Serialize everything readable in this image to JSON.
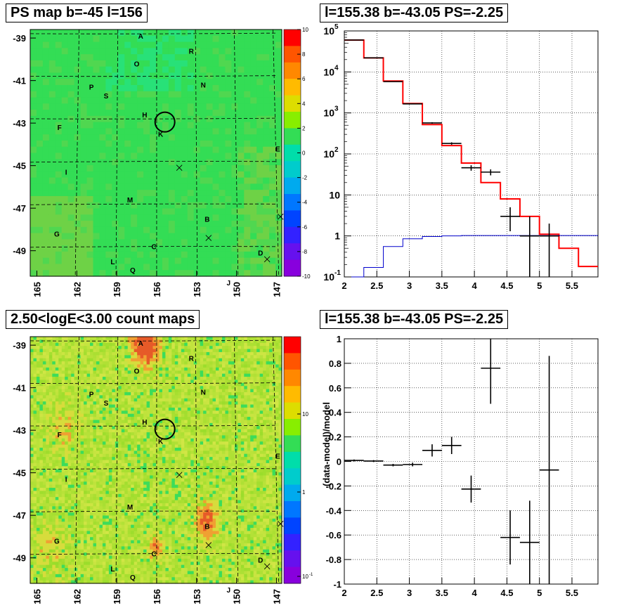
{
  "titles": {
    "ps_map": "PS map b=-45 l=156",
    "spectrum": "l=155.38 b=-43.05 PS=-2.25",
    "count_map": "2.50<logE<3.00 count maps",
    "residual": "l=155.38 b=-43.05 PS=-2.25"
  },
  "maps": {
    "y_ticks": [
      "-39",
      "-41",
      "-43",
      "-45",
      "-47",
      "-49"
    ],
    "x_ticks": [
      "165",
      "162",
      "159",
      "156",
      "153",
      "150",
      "147"
    ],
    "source_labels": [
      "A",
      "R",
      "O",
      "P",
      "N",
      "S",
      "H",
      "K",
      "F",
      "E",
      "I",
      "M",
      "B",
      "G",
      "C",
      "D",
      "L",
      "Q",
      "J"
    ]
  },
  "chart_data": [
    {
      "type": "heatmap",
      "title": "PS map b=-45 l=156",
      "ylim": [
        -50.2,
        -38.6
      ],
      "xlim": [
        165.5,
        146.6
      ],
      "colorbar": {
        "min": -10,
        "max": 10,
        "ticks": [
          "10",
          "8",
          "6",
          "4",
          "2",
          "0",
          "-2",
          "-4",
          "-6",
          "-8",
          "-10"
        ]
      },
      "base_color": "#33dd55"
    },
    {
      "type": "line",
      "title": "l=155.38 b=-43.05 PS=-2.25",
      "xlim": [
        2,
        5.9
      ],
      "ylim": [
        0.1,
        100000
      ],
      "log_y": true,
      "x_ticks": [
        "2",
        "2.5",
        "3",
        "3.5",
        "4",
        "4.5",
        "5",
        "5.5"
      ],
      "y_tick_labels": [
        "10",
        "1",
        "10"
      ],
      "y_tick_labels_pow": [
        "5",
        "4",
        "3",
        "2",
        "-1"
      ],
      "grid": true,
      "series": [
        {
          "color": "#ff0000",
          "edges": [
            2,
            2.3,
            2.6,
            2.9,
            3.2,
            3.5,
            3.8,
            4.1,
            4.4,
            4.7,
            5.0,
            5.3,
            5.6,
            5.9
          ],
          "values": [
            60000,
            22000,
            6000,
            1700,
            520,
            160,
            60,
            20,
            8,
            3,
            1.1,
            0.5,
            0.18
          ]
        },
        {
          "color": "#0000cc",
          "edges": [
            2,
            2.3,
            2.6,
            2.9,
            3.2,
            3.5,
            3.8,
            4.1,
            4.4,
            4.7,
            5.0,
            5.3,
            5.6,
            5.9
          ],
          "values": [
            0.08,
            0.17,
            0.55,
            0.85,
            0.97,
            1.0,
            1.02,
            1.02,
            1.02,
            1.02,
            1.02,
            1.02,
            1.02
          ]
        },
        {
          "color": "#000000",
          "points": [
            {
              "x": 2.15,
              "y": 60000,
              "xerr": 0.15,
              "ylo": 59000,
              "yhi": 61000
            },
            {
              "x": 2.45,
              "y": 22000,
              "xerr": 0.15,
              "ylo": 21500,
              "yhi": 22500
            },
            {
              "x": 2.75,
              "y": 5800,
              "xerr": 0.15,
              "ylo": 5700,
              "yhi": 5900
            },
            {
              "x": 3.05,
              "y": 1660,
              "xerr": 0.15,
              "ylo": 1620,
              "yhi": 1700
            },
            {
              "x": 3.35,
              "y": 570,
              "xerr": 0.15,
              "ylo": 545,
              "yhi": 595
            },
            {
              "x": 3.65,
              "y": 180,
              "xerr": 0.15,
              "ylo": 168,
              "yhi": 192
            },
            {
              "x": 3.95,
              "y": 46,
              "xerr": 0.15,
              "ylo": 39,
              "yhi": 53
            },
            {
              "x": 4.25,
              "y": 36,
              "xerr": 0.15,
              "ylo": 30,
              "yhi": 42
            },
            {
              "x": 4.55,
              "y": 3,
              "xerr": 0.15,
              "ylo": 1.3,
              "yhi": 5
            },
            {
              "x": 4.85,
              "y": 1,
              "xerr": 0.15,
              "ylo": 0.1,
              "yhi": 3
            },
            {
              "x": 5.15,
              "y": 1,
              "xerr": 0.15,
              "ylo": 0.1,
              "yhi": 2
            }
          ]
        }
      ]
    },
    {
      "type": "heatmap",
      "title": "2.50<logE<3.00 count maps",
      "ylim": [
        -50.2,
        -38.6
      ],
      "xlim": [
        165.5,
        146.6
      ],
      "colorbar": {
        "log": true,
        "ticks": [
          "10",
          "1",
          "10"
        ],
        "tick_pow": [
          "-1"
        ]
      },
      "base_color": "#a9e236"
    },
    {
      "type": "scatter",
      "title": "l=155.38 b=-43.05 PS=-2.25",
      "ylabel": "(data-model)/model",
      "xlim": [
        2,
        5.9
      ],
      "ylim": [
        -1,
        1
      ],
      "x_ticks": [
        "2",
        "2.5",
        "3",
        "3.5",
        "4",
        "4.5",
        "5",
        "5.5"
      ],
      "y_ticks": [
        "1",
        "0.8",
        "0.6",
        "0.4",
        "0.2",
        "0",
        "-0.2",
        "-0.4",
        "-0.6",
        "-0.8",
        "-1"
      ],
      "grid": true,
      "points": [
        {
          "x": 2.15,
          "y": 0.008,
          "xerr": 0.15,
          "yerr": 0.008
        },
        {
          "x": 2.45,
          "y": 0.003,
          "xerr": 0.15,
          "yerr": 0.008
        },
        {
          "x": 2.75,
          "y": -0.03,
          "xerr": 0.15,
          "yerr": 0.01
        },
        {
          "x": 3.05,
          "y": -0.025,
          "xerr": 0.15,
          "yerr": 0.015
        },
        {
          "x": 3.35,
          "y": 0.09,
          "xerr": 0.15,
          "yerr": 0.05
        },
        {
          "x": 3.65,
          "y": 0.13,
          "xerr": 0.15,
          "yerr": 0.07
        },
        {
          "x": 3.95,
          "y": -0.225,
          "xerr": 0.15,
          "yerr": 0.11
        },
        {
          "x": 4.25,
          "y": 0.76,
          "xerr": 0.15,
          "yerr": 0.29
        },
        {
          "x": 4.55,
          "y": -0.62,
          "xerr": 0.15,
          "yerr": 0.22
        },
        {
          "x": 4.85,
          "y": -0.66,
          "xerr": 0.15,
          "yerr": 0.34
        },
        {
          "x": 5.15,
          "y": -0.07,
          "xerr": 0.15,
          "yerr": 0.93
        }
      ]
    }
  ]
}
